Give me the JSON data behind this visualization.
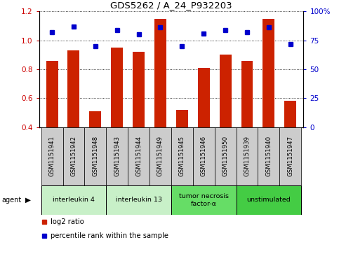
{
  "title": "GDS5262 / A_24_P932203",
  "samples": [
    "GSM1151941",
    "GSM1151942",
    "GSM1151948",
    "GSM1151943",
    "GSM1151944",
    "GSM1151949",
    "GSM1151945",
    "GSM1151946",
    "GSM1151950",
    "GSM1151939",
    "GSM1151940",
    "GSM1151947"
  ],
  "log2_ratio": [
    0.86,
    0.93,
    0.51,
    0.95,
    0.92,
    1.15,
    0.52,
    0.81,
    0.9,
    0.86,
    1.15,
    0.58
  ],
  "percentile_right": [
    82,
    87,
    70,
    84,
    80,
    86,
    70,
    81,
    84,
    82,
    86,
    72
  ],
  "bar_color": "#cc2200",
  "dot_color": "#0000cc",
  "ylim_left": [
    0.4,
    1.2
  ],
  "ylim_right": [
    0,
    100
  ],
  "yticks_left": [
    0.4,
    0.6,
    0.8,
    1.0,
    1.2
  ],
  "yticks_right": [
    0,
    25,
    50,
    75,
    100
  ],
  "ytick_labels_right": [
    "0",
    "25",
    "50",
    "75",
    "100%"
  ],
  "groups": [
    {
      "label": "interleukin 4",
      "start": 0,
      "end": 3,
      "color": "#c8f0c8"
    },
    {
      "label": "interleukin 13",
      "start": 3,
      "end": 6,
      "color": "#c8f0c8"
    },
    {
      "label": "tumor necrosis\nfactor-α",
      "start": 6,
      "end": 9,
      "color": "#66dd66"
    },
    {
      "label": "unstimulated",
      "start": 9,
      "end": 12,
      "color": "#44cc44"
    }
  ],
  "agent_label": "agent",
  "legend_bar_label": "log2 ratio",
  "legend_dot_label": "percentile rank within the sample",
  "bar_width": 0.55,
  "tick_label_color_left": "#cc0000",
  "tick_label_color_right": "#0000cc",
  "xlabel_bg": "#cccccc",
  "dot_size": 5
}
